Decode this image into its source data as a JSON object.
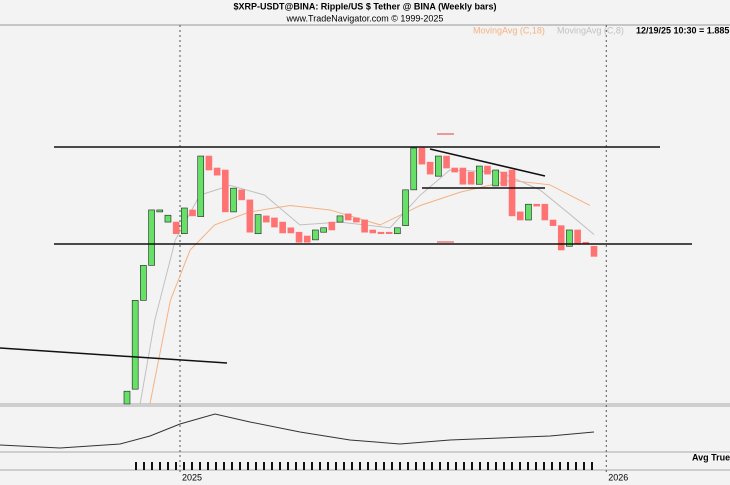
{
  "chart_data": {
    "type": "candlestick",
    "title": "$XRP-USDT@BINA:  Ripple/US $ Tether @ BINA  (Weekly bars)",
    "subtitle": "www.TradeNavigator.com © 1999-2025",
    "timestamp": "12/19/25 10:30 = 1.885",
    "indicator_label": "Avg True",
    "categories": [
      null,
      null,
      null,
      null,
      null,
      null,
      null,
      null,
      null,
      null,
      null,
      null,
      null,
      null,
      null,
      null,
      null,
      null,
      null,
      null,
      null,
      null,
      null,
      null,
      null,
      null,
      null,
      null,
      null,
      null,
      null,
      null,
      null,
      null,
      null,
      null,
      null,
      null,
      null,
      null,
      null,
      null,
      null,
      null,
      null,
      null,
      null,
      null,
      null,
      null,
      null,
      null,
      null,
      null,
      null,
      null,
      null,
      null
    ],
    "open": [
      0.71,
      0.78,
      1.37,
      1.71,
      2.4,
      2.25,
      2.25,
      2.09,
      2.43,
      2.33,
      3.42,
      3.17,
      3.13,
      2.4,
      2.76,
      2.59,
      2.09,
      2.34,
      2.31,
      2.25,
      2.17,
      2.11,
      2.06,
      2.01,
      2.11,
      2.25,
      2.25,
      2.37,
      2.31,
      2.28,
      2.14,
      2.11,
      2.11,
      2.09,
      2.2,
      2.76,
      3.6,
      3.29,
      3.01,
      3.42,
      3.17,
      3.17,
      3.09,
      2.86,
      3.21,
      2.83,
      3.09,
      3.13,
      2.4,
      2.28,
      2.52,
      2.52,
      2.28,
      2.2,
      1.93,
      2.14,
      1.98,
      1.93
    ],
    "close": [
      0.77,
      1.37,
      1.71,
      2.43,
      2.43,
      2.35,
      2.09,
      2.46,
      2.34,
      3.42,
      3.13,
      3.03,
      2.4,
      2.79,
      2.59,
      2.11,
      2.36,
      2.25,
      2.18,
      2.1,
      2.1,
      1.98,
      1.98,
      2.14,
      2.17,
      2.14,
      2.34,
      2.28,
      2.25,
      2.11,
      2.1,
      2.09,
      2.09,
      2.17,
      2.76,
      3.6,
      3.25,
      3.05,
      3.42,
      3.17,
      3.09,
      2.86,
      2.86,
      3.21,
      3.05,
      3.13,
      2.83,
      2.34,
      2.28,
      2.52,
      2.49,
      2.28,
      2.2,
      1.885,
      2.14,
      1.96,
      1.96,
      1.81
    ],
    "up_color": "#66e066",
    "down_color": "#ff7373",
    "log": true,
    "ylim": [
      0.71,
      7.85
    ],
    "xlim": [
      -15.5,
      73.6
    ],
    "xticks": [
      {
        "value": 6.47,
        "label": "2025"
      },
      {
        "value": 58.5,
        "label": "2026"
      }
    ],
    "lines": [
      {
        "name": "MovingAvg (C,18)",
        "color": "#f4b183",
        "x": [
          2.8,
          5.3,
          7.7,
          10.7,
          15.0,
          19.9,
          24.8,
          30.9,
          35.8,
          40.7,
          46.8,
          51.6,
          56.5
        ],
        "values": [
          0.71,
          1.37,
          1.885,
          2.21,
          2.4,
          2.5,
          2.43,
          2.21,
          2.5,
          2.72,
          2.93,
          2.85,
          2.5
        ]
      },
      {
        "name": "MovingAvg (C,8)",
        "color": "#c0c0c0",
        "x": [
          1.6,
          3.4,
          5.9,
          8.9,
          12.6,
          16.8,
          21.1,
          26.0,
          32.1,
          35.8,
          39.4,
          45.5,
          50.4,
          54.1,
          57.0
        ],
        "values": [
          0.71,
          1.21,
          2.01,
          2.67,
          2.84,
          2.67,
          2.21,
          2.25,
          2.17,
          2.67,
          3.13,
          3.09,
          2.76,
          2.36,
          2.08
        ]
      }
    ]
  }
}
